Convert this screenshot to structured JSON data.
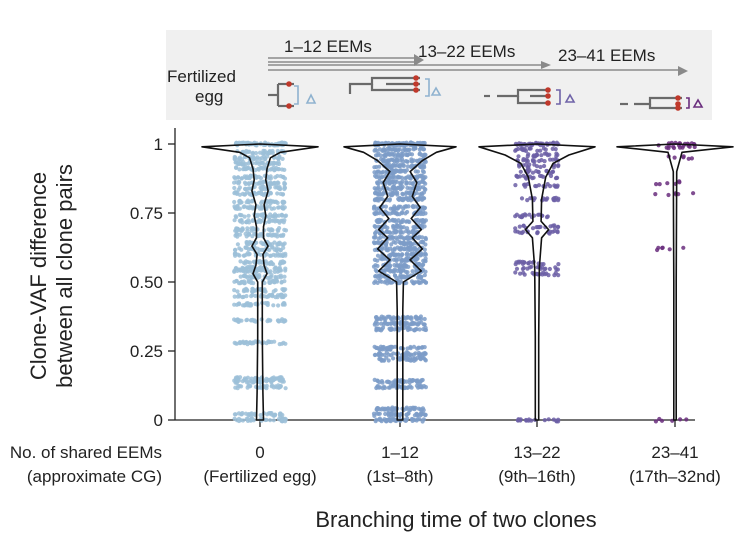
{
  "chart_data": {
    "type": "violin+strip",
    "ylabel_line1": "Clone-VAF difference",
    "ylabel_line2": "between all clone pairs",
    "xlabel": "Branching time of two clones",
    "xaxis_row_label_line1": "No. of shared EEMs",
    "xaxis_row_label_line2": "(approximate CG)",
    "ylim": [
      0,
      1
    ],
    "yticks": [
      {
        "value": 0,
        "label": "0"
      },
      {
        "value": 0.25,
        "label": "0.25"
      },
      {
        "value": 0.5,
        "label": "0.50"
      },
      {
        "value": 0.75,
        "label": "0.75"
      },
      {
        "value": 1,
        "label": "1"
      }
    ],
    "categories": [
      {
        "label": "0",
        "sublabel": "(Fertilized egg)",
        "color": "#9cc0d8",
        "levels": [
          0,
          0.02,
          0.12,
          0.14,
          0.15,
          0.28,
          0.36,
          0.42,
          0.45,
          0.47,
          0.5,
          0.52,
          0.54,
          0.55,
          0.57,
          0.6,
          0.62,
          0.64,
          0.67,
          0.69,
          0.72,
          0.74,
          0.77,
          0.79,
          0.82,
          0.84,
          0.86,
          0.88,
          0.91,
          0.93,
          0.95,
          0.97,
          1
        ],
        "violin": [
          [
            0,
            0.06
          ],
          [
            0.1,
            0.05
          ],
          [
            0.3,
            0.04
          ],
          [
            0.5,
            0.04
          ],
          [
            0.53,
            0.12
          ],
          [
            0.56,
            0.07
          ],
          [
            0.6,
            0.05
          ],
          [
            0.63,
            0.14
          ],
          [
            0.66,
            0.06
          ],
          [
            0.7,
            0.06
          ],
          [
            0.74,
            0.1
          ],
          [
            0.78,
            0.07
          ],
          [
            0.83,
            0.14
          ],
          [
            0.87,
            0.1
          ],
          [
            0.91,
            0.12
          ],
          [
            0.95,
            0.18
          ],
          [
            0.97,
            0.35
          ],
          [
            0.99,
            1
          ]
        ]
      },
      {
        "label": "1–12",
        "sublabel": "(1st–8th)",
        "color": "#7c9cc8",
        "levels": [
          0,
          0.02,
          0.04,
          0.12,
          0.14,
          0.22,
          0.24,
          0.26,
          0.33,
          0.35,
          0.37,
          0.5,
          0.52,
          0.54,
          0.56,
          0.58,
          0.6,
          0.62,
          0.64,
          0.66,
          0.68,
          0.7,
          0.72,
          0.75,
          0.77,
          0.8,
          0.82,
          0.84,
          0.86,
          0.88,
          0.9,
          0.92,
          0.94,
          0.96,
          0.98,
          1
        ],
        "violin": [
          [
            0,
            0.05
          ],
          [
            0.2,
            0.05
          ],
          [
            0.4,
            0.05
          ],
          [
            0.5,
            0.06
          ],
          [
            0.54,
            0.38
          ],
          [
            0.58,
            0.18
          ],
          [
            0.62,
            0.4
          ],
          [
            0.66,
            0.22
          ],
          [
            0.69,
            0.38
          ],
          [
            0.73,
            0.2
          ],
          [
            0.77,
            0.36
          ],
          [
            0.81,
            0.22
          ],
          [
            0.86,
            0.3
          ],
          [
            0.9,
            0.18
          ],
          [
            0.94,
            0.4
          ],
          [
            0.97,
            0.65
          ],
          [
            0.99,
            1
          ]
        ]
      },
      {
        "label": "13–22",
        "sublabel": "(9th–16th)",
        "color": "#6c5fa6",
        "levels": [
          0,
          0.53,
          0.55,
          0.57,
          0.68,
          0.7,
          0.74,
          0.8,
          0.85,
          0.88,
          0.9,
          0.92,
          0.94,
          0.96,
          0.98,
          1
        ],
        "violin": [
          [
            0,
            0.03
          ],
          [
            0.3,
            0.03
          ],
          [
            0.55,
            0.04
          ],
          [
            0.66,
            0.08
          ],
          [
            0.69,
            0.2
          ],
          [
            0.72,
            0.07
          ],
          [
            0.8,
            0.08
          ],
          [
            0.88,
            0.15
          ],
          [
            0.93,
            0.28
          ],
          [
            0.96,
            0.55
          ],
          [
            0.99,
            1
          ]
        ]
      },
      {
        "label": "23–41",
        "sublabel": "(17th–32nd)",
        "color": "#6a2e7e",
        "levels": [
          0,
          0.62,
          0.82,
          0.86,
          0.95,
          0.99,
          1
        ],
        "violin": [
          [
            0,
            0.02
          ],
          [
            0.5,
            0.02
          ],
          [
            0.9,
            0.03
          ],
          [
            0.97,
            0.12
          ],
          [
            0.99,
            1
          ]
        ]
      }
    ]
  },
  "schematic": {
    "root_label_line1": "Fertilized",
    "root_label_line2": "egg",
    "arrows": [
      {
        "label": "1–12 EEMs"
      },
      {
        "label": "13–22 EEMs"
      },
      {
        "label": "23–41 EEMs"
      }
    ],
    "colors": {
      "panel_bg": "#f0f0f0",
      "arrow": "#8a8a8a",
      "tree": "#6a6a6a",
      "mutation": "#c0392b"
    }
  }
}
